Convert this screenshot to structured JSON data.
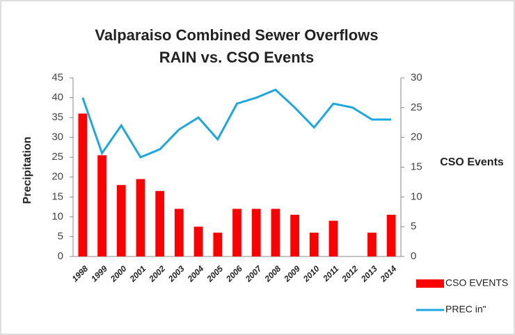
{
  "chart_data": {
    "type": "bar_line",
    "title": [
      "Valparaiso Combined Sewer Overflows",
      "RAIN vs. CSO Events"
    ],
    "y_label": "Precipitation",
    "y2_label": "CSO Events",
    "categories": [
      "1998",
      "1999",
      "2000",
      "2001",
      "2002",
      "2003",
      "2004",
      "2005",
      "2006",
      "2007",
      "2008",
      "2009",
      "2010",
      "2011",
      "2012",
      "2013",
      "2014"
    ],
    "series": [
      {
        "name": "CSO EVENTS",
        "type": "bar",
        "axis": "y2",
        "color": "#ff0000",
        "values": [
          24,
          17,
          12,
          13,
          11,
          8,
          5,
          4,
          8,
          8,
          8,
          7,
          4,
          6,
          0,
          4,
          7
        ]
      },
      {
        "name": "PREC in\"",
        "type": "line",
        "axis": "y",
        "color": "#1ba8e0",
        "values": [
          40,
          26,
          33,
          25,
          27,
          32,
          35,
          29.5,
          38.5,
          40,
          42,
          37.5,
          32.5,
          38.5,
          37.5,
          34.5,
          34.5
        ]
      }
    ],
    "ylim": [
      0,
      45
    ],
    "yticks": [
      0,
      5,
      10,
      15,
      20,
      25,
      30,
      35,
      40,
      45
    ],
    "y2lim": [
      0,
      30
    ],
    "y2ticks": [
      0,
      5,
      10,
      15,
      20,
      25,
      30
    ]
  }
}
